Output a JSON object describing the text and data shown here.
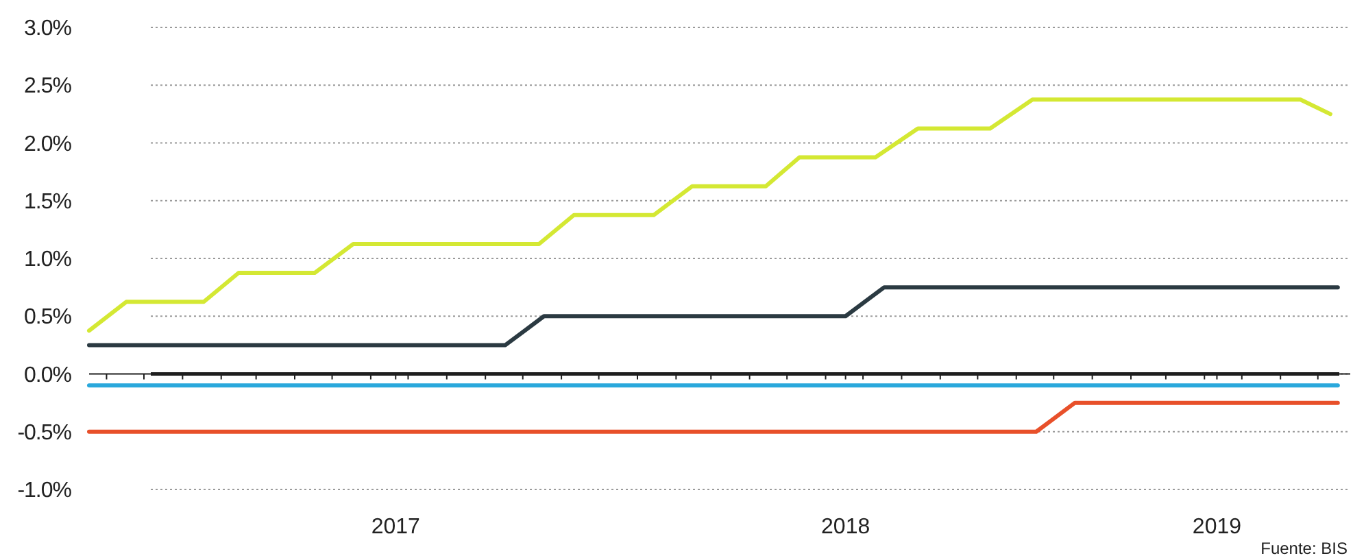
{
  "chart_data": {
    "type": "line",
    "xlim": [
      "2016-11-01",
      "2019-08-10"
    ],
    "ylim": [
      -1,
      3
    ],
    "yticks": [
      {
        "value": -1,
        "label": "-1.0%"
      },
      {
        "value": -0.5,
        "label": "-0.5%"
      },
      {
        "value": 0,
        "label": "0.0%"
      },
      {
        "value": 0.5,
        "label": "0.5%"
      },
      {
        "value": 1,
        "label": "1.0%"
      },
      {
        "value": 1.5,
        "label": "1.5%"
      },
      {
        "value": 2,
        "label": "2.0%"
      },
      {
        "value": 2.5,
        "label": "2.5%"
      },
      {
        "value": 3,
        "label": "3.0%"
      }
    ],
    "xticks": [
      {
        "value": "2016-11-15",
        "label": null
      },
      {
        "value": "2016-12-15",
        "label": null
      },
      {
        "value": "2017-01-15",
        "label": null
      },
      {
        "value": "2017-02-15",
        "label": null
      },
      {
        "value": "2017-03-15",
        "label": null
      },
      {
        "value": "2017-04-15",
        "label": null
      },
      {
        "value": "2017-05-15",
        "label": null
      },
      {
        "value": "2017-06-15",
        "label": null
      },
      {
        "value": "2017-07-05",
        "label": "2017"
      },
      {
        "value": "2017-07-15",
        "label": null
      },
      {
        "value": "2017-08-15",
        "label": null
      },
      {
        "value": "2017-09-15",
        "label": null
      },
      {
        "value": "2017-10-15",
        "label": null
      },
      {
        "value": "2017-11-15",
        "label": null
      },
      {
        "value": "2017-12-15",
        "label": null
      },
      {
        "value": "2018-01-15",
        "label": null
      },
      {
        "value": "2018-02-15",
        "label": null
      },
      {
        "value": "2018-03-15",
        "label": null
      },
      {
        "value": "2018-04-15",
        "label": null
      },
      {
        "value": "2018-05-15",
        "label": null
      },
      {
        "value": "2018-06-15",
        "label": null
      },
      {
        "value": "2018-07-01",
        "label": "2018"
      },
      {
        "value": "2018-07-15",
        "label": null
      },
      {
        "value": "2018-08-15",
        "label": null
      },
      {
        "value": "2018-09-15",
        "label": null
      },
      {
        "value": "2018-10-15",
        "label": null
      },
      {
        "value": "2018-11-15",
        "label": null
      },
      {
        "value": "2018-12-15",
        "label": null
      },
      {
        "value": "2019-01-15",
        "label": null
      },
      {
        "value": "2019-02-15",
        "label": null
      },
      {
        "value": "2019-03-15",
        "label": null
      },
      {
        "value": "2019-04-15",
        "label": null
      },
      {
        "value": "2019-04-25",
        "label": "2019"
      },
      {
        "value": "2019-05-15",
        "label": null
      },
      {
        "value": "2019-06-15",
        "label": null
      },
      {
        "value": "2019-07-15",
        "label": null
      }
    ],
    "grid": "y",
    "marker": "none",
    "line_style": "solid",
    "ref_lines": [
      {
        "axis": "y",
        "value": 0,
        "color": "#1e1e1e"
      }
    ],
    "annotations": [
      "Fuente: BIS"
    ],
    "series": [
      {
        "color": "#d4e833",
        "x": [
          "2016-11-01",
          "2016-12-01",
          "2017-02-01",
          "2017-03-01",
          "2017-05-01",
          "2017-06-01",
          "2017-10-28",
          "2017-11-25",
          "2018-01-28",
          "2018-02-28",
          "2018-04-28",
          "2018-05-25",
          "2018-07-25",
          "2018-08-28",
          "2018-10-25",
          "2018-11-28",
          "2019-07-01",
          "2019-07-25"
        ],
        "values": [
          0.375,
          0.625,
          0.625,
          0.875,
          0.875,
          1.125,
          1.125,
          1.375,
          1.375,
          1.625,
          1.625,
          1.875,
          1.875,
          2.125,
          2.125,
          2.375,
          2.375,
          2.25
        ]
      },
      {
        "color": "#2b3a42",
        "x": [
          "2016-11-01",
          "2017-10-01",
          "2017-11-01",
          "2018-07-01",
          "2018-08-01",
          "2019-07-31"
        ],
        "values": [
          0.25,
          0.25,
          0.5,
          0.5,
          0.75,
          0.75
        ]
      },
      {
        "color": "#2aa8dc",
        "x": [
          "2016-11-01",
          "2019-07-31"
        ],
        "values": [
          -0.1,
          -0.1
        ]
      },
      {
        "color": "#e8502a",
        "x": [
          "2016-11-01",
          "2018-12-01",
          "2019-01-01",
          "2019-07-31"
        ],
        "values": [
          -0.5,
          -0.5,
          -0.25,
          -0.25
        ]
      }
    ]
  }
}
